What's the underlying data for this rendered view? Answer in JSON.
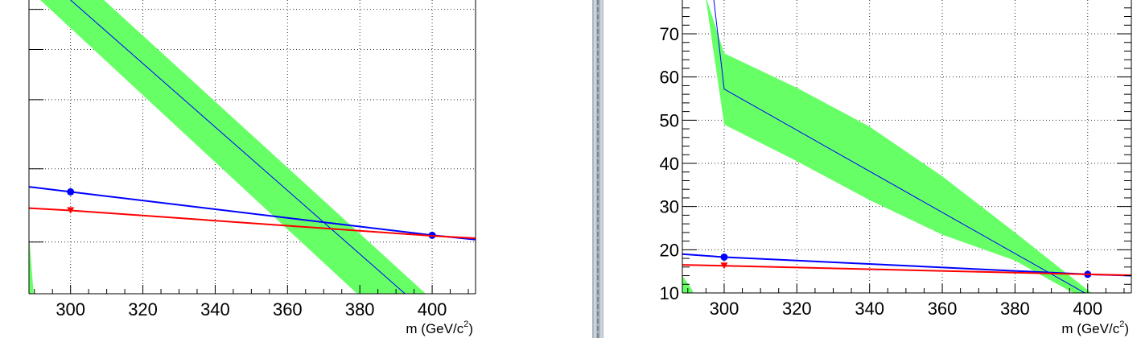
{
  "chart_data": [
    {
      "type": "line",
      "title": "",
      "xlabel": "m (GeV/c",
      "xlabel_sup": "2",
      "xlabel_close": ")",
      "ylabel": "",
      "xlim": [
        288.5,
        412
      ],
      "ylim": [
        0,
        1
      ],
      "y_tick_labels_visible": false,
      "y_major_tick_fractions": [
        0.175,
        0.423,
        0.657,
        0.827,
        0.963
      ],
      "x_major_ticks": [
        300,
        320,
        340,
        360,
        380,
        400
      ],
      "x_tick_labels": [
        "300",
        "320",
        "340",
        "360",
        "380",
        "400"
      ],
      "grid": true,
      "series": [
        {
          "kind": "band",
          "color": "#66ff66",
          "fill_fraction_upper": [
            [
              288.5,
              1.06
            ],
            [
              388,
              0.0
            ],
            [
              412,
              0.0
            ]
          ],
          "note_hidden": ""
        },
        {
          "kind": "band",
          "color": "#66ff66",
          "polygon_fraction": [
            [
              288.5,
              1.12
            ],
            [
              298,
              1.12
            ],
            [
              400,
              -0.02
            ],
            [
              381,
              -0.02
            ],
            [
              288.5,
              1.03
            ]
          ]
        },
        {
          "kind": "band",
          "color": "#66ff66",
          "polygon_fraction": [
            [
              288.5,
              0.2
            ],
            [
              289.8,
              0.0
            ],
            [
              288.5,
              0.0
            ]
          ]
        },
        {
          "kind": "line",
          "color": "#0000ff",
          "width": 1,
          "points_fraction": [
            [
              299.5,
              1.0
            ],
            [
              392.5,
              0.0
            ]
          ]
        },
        {
          "kind": "line",
          "color": "#0000ff",
          "width": 2,
          "points_fraction": [
            [
              288.5,
              0.362
            ],
            [
              300,
              0.345
            ],
            [
              400,
              0.198
            ],
            [
              412,
              0.183
            ]
          ],
          "markers": [
            [
              300,
              0.345
            ],
            [
              400,
              0.198
            ]
          ],
          "marker": "circle"
        },
        {
          "kind": "line",
          "color": "#ff0000",
          "width": 2,
          "points_fraction": [
            [
              288.5,
              0.29
            ],
            [
              300,
              0.282
            ],
            [
              400,
              0.196
            ],
            [
              412,
              0.188
            ]
          ],
          "markers": [
            [
              300,
              0.282
            ]
          ],
          "marker": "triangle-down"
        }
      ]
    },
    {
      "type": "line",
      "title": "",
      "xlabel": "m (GeV/c",
      "xlabel_sup": "2",
      "xlabel_close": ")",
      "ylabel": "",
      "xlim": [
        288.5,
        412
      ],
      "ylim": [
        10,
        78.2
      ],
      "y_major_ticks": [
        10,
        20,
        30,
        40,
        50,
        60,
        70
      ],
      "y_tick_labels": [
        "10",
        "20",
        "30",
        "40",
        "50",
        "60",
        "70"
      ],
      "x_major_ticks": [
        300,
        320,
        340,
        360,
        380,
        400
      ],
      "x_tick_labels": [
        "300",
        "320",
        "340",
        "360",
        "380",
        "400"
      ],
      "grid": true,
      "series": [
        {
          "kind": "band",
          "color": "#66ff66",
          "polygon": [
            [
              294.8,
              79
            ],
            [
              300,
              65.5
            ],
            [
              320,
              57.5
            ],
            [
              340,
              48.5
            ],
            [
              360,
              37
            ],
            [
              380,
              24
            ],
            [
              401,
              10
            ],
            [
              396,
              10
            ],
            [
              380,
              17.5
            ],
            [
              360,
              23.5
            ],
            [
              340,
              31.5
            ],
            [
              320,
              40.5
            ],
            [
              300,
              49
            ],
            [
              294.8,
              79
            ]
          ]
        },
        {
          "kind": "band",
          "color": "#66ff66",
          "polygon": [
            [
              288.5,
              14
            ],
            [
              291,
              11
            ],
            [
              291.5,
              10
            ],
            [
              288.5,
              10
            ]
          ]
        },
        {
          "kind": "line",
          "color": "#0000ff",
          "width": 1,
          "points": [
            [
              297,
              79
            ],
            [
              300,
              57.2
            ],
            [
              400,
              9.6
            ]
          ]
        },
        {
          "kind": "line",
          "color": "#0000ff",
          "width": 2,
          "points": [
            [
              288.5,
              19
            ],
            [
              300,
              18.3
            ],
            [
              400,
              14.3
            ],
            [
              412,
              14
            ]
          ],
          "markers": [
            [
              300,
              18.3
            ],
            [
              400,
              14.3
            ]
          ],
          "marker": "circle"
        },
        {
          "kind": "line",
          "color": "#ff0000",
          "width": 2,
          "points": [
            [
              288.5,
              16.5
            ],
            [
              300,
              16.3
            ],
            [
              400,
              14.3
            ],
            [
              412,
              14.1
            ]
          ],
          "markers": [
            [
              300,
              16.3
            ]
          ],
          "marker": "triangle-down"
        }
      ]
    }
  ],
  "separator": {
    "color_outer": "#aab4bf",
    "color_inner": "#ccd3db"
  }
}
